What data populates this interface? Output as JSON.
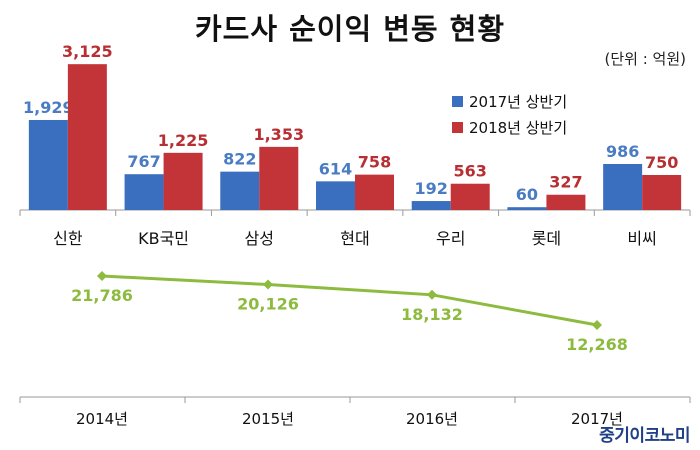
{
  "title": "카드사 순이익 변동 현황",
  "unit": "(단위 : 억원)",
  "brand": "중기이코노미",
  "colors": {
    "series_2017": "#3a6fc0",
    "series_2018": "#c33438",
    "line": "#8dbb3f"
  },
  "chart_data": [
    {
      "type": "bar",
      "categories": [
        "신한",
        "KB국민",
        "삼성",
        "현대",
        "우리",
        "롯데",
        "비씨"
      ],
      "series": [
        {
          "name": "2017년 상반기",
          "values": [
            1929,
            767,
            822,
            614,
            192,
            60,
            986
          ]
        },
        {
          "name": "2018년 상반기",
          "values": [
            3125,
            1225,
            1353,
            758,
            563,
            327,
            750
          ]
        }
      ],
      "value_labels": [
        [
          "1,929",
          "767",
          "822",
          "614",
          "192",
          "60",
          "986"
        ],
        [
          "3,125",
          "1,225",
          "1,353",
          "758",
          "563",
          "327",
          "750"
        ]
      ],
      "ylim": [
        0,
        3300
      ],
      "legend": "top-right",
      "grid": false
    },
    {
      "type": "line",
      "categories": [
        "2014년",
        "2015년",
        "2016년",
        "2017년"
      ],
      "values": [
        21786,
        20126,
        18132,
        12268
      ],
      "value_labels": [
        "21,786",
        "20,126",
        "18,132",
        "12,268"
      ],
      "ylim": [
        10000,
        23000
      ],
      "grid": false
    }
  ]
}
